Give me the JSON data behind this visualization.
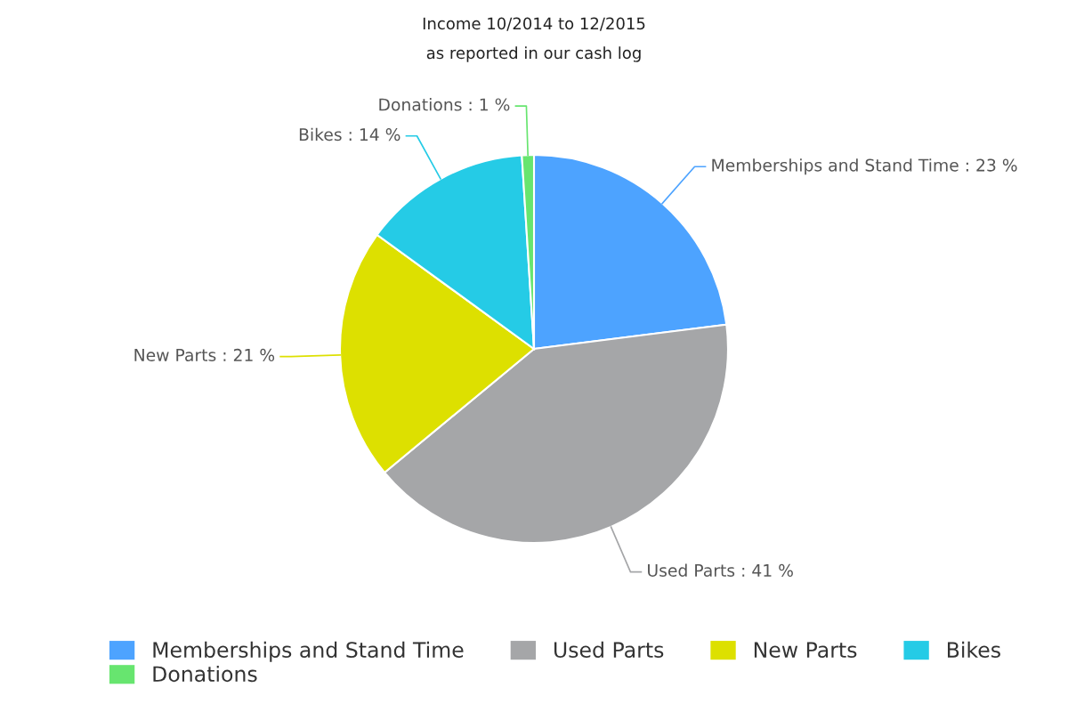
{
  "chart_data": {
    "type": "pie",
    "title": "Income 10/2014 to 12/2015",
    "subtitle": "as reported in our cash log",
    "categories": [
      "Memberships and Stand Time",
      "Used Parts",
      "New Parts",
      "Bikes",
      "Donations"
    ],
    "values": [
      23,
      41,
      21,
      14,
      1
    ],
    "value_labels": [
      ": 23 %",
      ": 41 %",
      ": 21 %",
      ": 14 %",
      ": 1 %"
    ],
    "colors": [
      "#4da3ff",
      "#a5a6a8",
      "#dde000",
      "#25cbe6",
      "#67e56f"
    ],
    "legend": "bottom"
  }
}
